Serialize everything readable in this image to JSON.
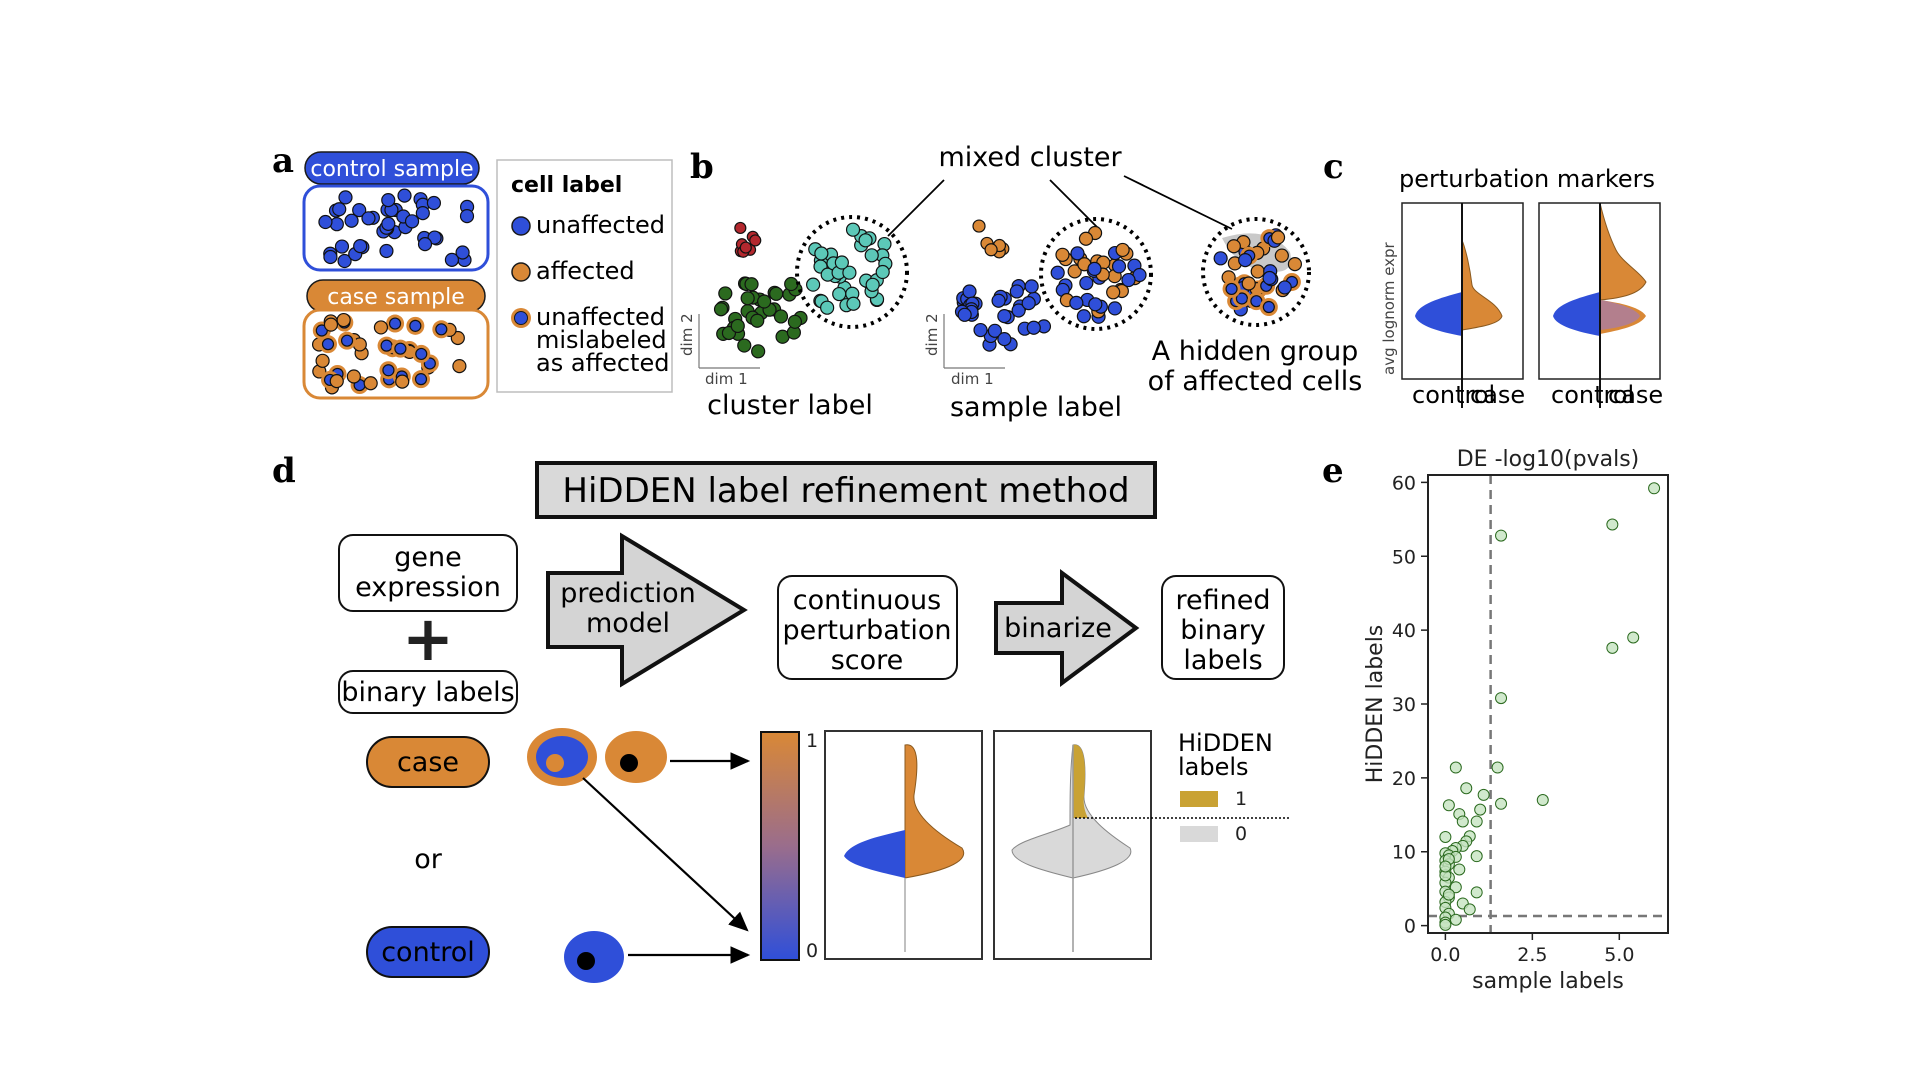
{
  "panel_a": {
    "letter": "a",
    "control_sample": "control sample",
    "case_sample": "case sample",
    "legend_title": "cell label",
    "legend_items": [
      "unaffected",
      "affected",
      "unaffected",
      "mislabeled",
      "as affected"
    ],
    "colors": {
      "blue": "#2f4fd9",
      "orange": "#d98836",
      "dark_green": "#2b6a1f",
      "teal": "#5cc8b8",
      "red": "#b3282e"
    }
  },
  "panel_b": {
    "letter": "b",
    "mixed_cluster": "mixed cluster",
    "dim1": "dim 1",
    "dim2": "dim 2",
    "cluster_label": "cluster label",
    "sample_label": "sample label",
    "hidden_group_line1": "A hidden group",
    "hidden_group_line2": "of affected cells"
  },
  "panel_c": {
    "letter": "c",
    "title": "perturbation markers",
    "ylabel": "avg lognorm expr",
    "x_left": "control",
    "x_right": "case"
  },
  "panel_d": {
    "letter": "d",
    "title": "HiDDEN label refinement method",
    "gene_expression_line1": "gene",
    "gene_expression_line2": "expression",
    "plus": "+",
    "binary_labels": "binary labels",
    "prediction_line1": "prediction",
    "prediction_line2": "model",
    "continuous_line1": "continuous",
    "continuous_line2": "perturbation",
    "continuous_line3": "score",
    "binarize": "binarize",
    "refined_line1": "refined",
    "refined_line2": "binary",
    "refined_line3": "labels",
    "case": "case",
    "or": "or",
    "control": "control",
    "colorbar_top": "1",
    "colorbar_bottom": "0",
    "hidden_labels_line1": "HiDDEN",
    "hidden_labels_line2": "labels",
    "legend_1": "1",
    "legend_0": "0",
    "gold": "#c9a234"
  },
  "panel_e": {
    "letter": "e",
    "chart_data": {
      "type": "scatter",
      "title": "DE -log10(pvals)",
      "xlabel": "sample labels",
      "ylabel": "HiDDEN labels",
      "xlim": [
        -0.5,
        6.4
      ],
      "ylim": [
        -1,
        61
      ],
      "xticks": [
        "0.0",
        "2.5",
        "5.0"
      ],
      "yticks": [
        "0",
        "10",
        "20",
        "30",
        "40",
        "50",
        "60"
      ],
      "threshold_x": 1.3,
      "threshold_y": 1.3,
      "points": [
        [
          6.0,
          59.2
        ],
        [
          4.8,
          54.3
        ],
        [
          1.6,
          52.8
        ],
        [
          5.4,
          39.0
        ],
        [
          4.8,
          37.6
        ],
        [
          1.6,
          30.8
        ],
        [
          1.5,
          21.4
        ],
        [
          0.3,
          21.4
        ],
        [
          0.6,
          18.6
        ],
        [
          1.1,
          17.7
        ],
        [
          2.8,
          17.0
        ],
        [
          1.6,
          16.5
        ],
        [
          0.1,
          16.3
        ],
        [
          1.0,
          15.7
        ],
        [
          0.4,
          15.1
        ],
        [
          0.5,
          14.1
        ],
        [
          0.9,
          14.1
        ],
        [
          0.7,
          12.1
        ],
        [
          0.0,
          12.0
        ],
        [
          0.6,
          11.4
        ],
        [
          0.5,
          10.8
        ],
        [
          0.3,
          10.5
        ],
        [
          0.2,
          10.1
        ],
        [
          0.0,
          9.8
        ],
        [
          0.1,
          9.5
        ],
        [
          0.3,
          9.3
        ],
        [
          0.9,
          9.4
        ],
        [
          0.0,
          8.8
        ],
        [
          0.1,
          8.3
        ],
        [
          0.4,
          7.6
        ],
        [
          0.0,
          7.3
        ],
        [
          0.1,
          6.5
        ],
        [
          0.0,
          5.8
        ],
        [
          0.3,
          5.2
        ],
        [
          0.0,
          4.6
        ],
        [
          0.9,
          4.5
        ],
        [
          0.1,
          3.8
        ],
        [
          0.0,
          3.2
        ],
        [
          0.5,
          3.0
        ],
        [
          0.0,
          2.4
        ],
        [
          0.7,
          2.2
        ],
        [
          0.1,
          1.6
        ],
        [
          0.0,
          1.1
        ],
        [
          0.3,
          0.8
        ],
        [
          0.0,
          0.4
        ],
        [
          0.0,
          0.1
        ],
        [
          0.1,
          9.0
        ],
        [
          0.0,
          6.8
        ],
        [
          0.0,
          8.0
        ],
        [
          0.1,
          4.2
        ]
      ]
    }
  }
}
